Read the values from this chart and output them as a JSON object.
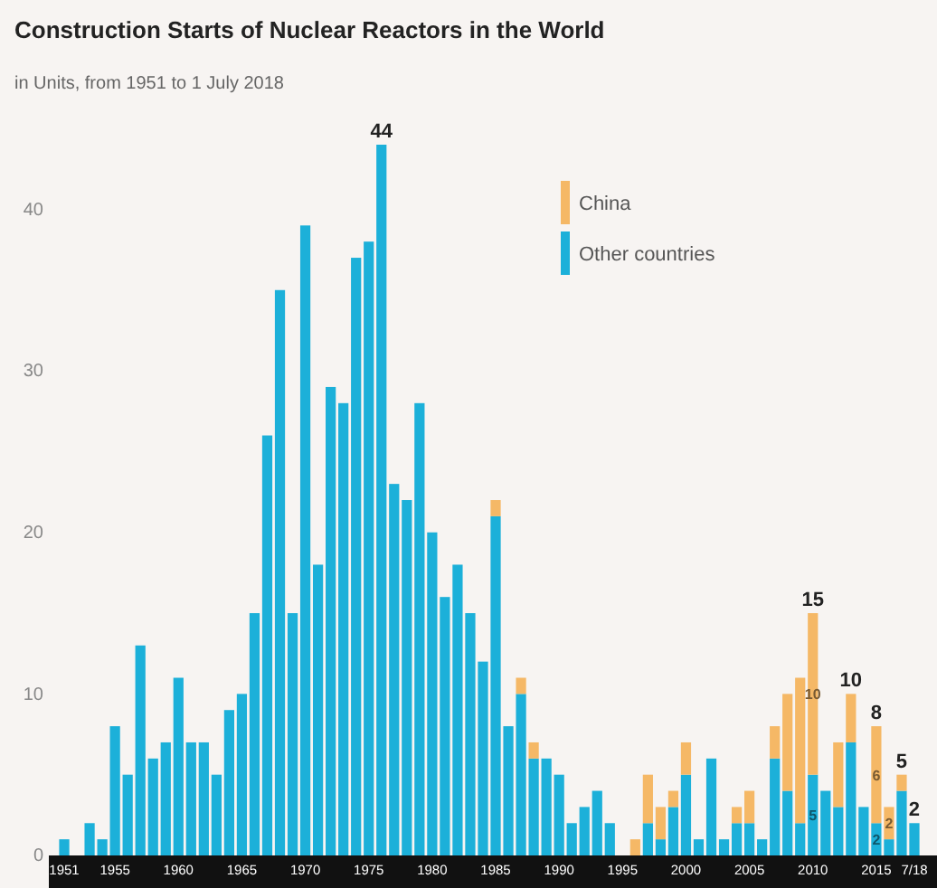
{
  "chart_data": {
    "type": "bar",
    "title": "Construction Starts of Nuclear Reactors in the World",
    "subtitle": "in Units, from 1951 to 1 July 2018",
    "categories": [
      "1951",
      null,
      null,
      null,
      "1955",
      null,
      null,
      null,
      null,
      "1960",
      null,
      null,
      null,
      null,
      "1965",
      null,
      null,
      null,
      null,
      "1970",
      null,
      null,
      null,
      null,
      "1975",
      null,
      null,
      null,
      null,
      "1980",
      null,
      null,
      null,
      null,
      "1985",
      null,
      null,
      null,
      null,
      "1990",
      null,
      null,
      null,
      null,
      "1995",
      null,
      null,
      null,
      null,
      "2000",
      null,
      null,
      null,
      null,
      "2005",
      null,
      null,
      null,
      null,
      "2010",
      null,
      null,
      null,
      null,
      "2015",
      null,
      null,
      "7/18"
    ],
    "stacked": true,
    "series": [
      {
        "name": "Other countries",
        "color": "#1cb0d9",
        "values": [
          1,
          0,
          2,
          1,
          8,
          5,
          13,
          6,
          7,
          11,
          7,
          7,
          5,
          9,
          10,
          15,
          26,
          35,
          15,
          39,
          18,
          29,
          28,
          37,
          38,
          44,
          23,
          22,
          28,
          20,
          16,
          18,
          15,
          12,
          21,
          8,
          10,
          6,
          6,
          5,
          2,
          3,
          4,
          2,
          0,
          0,
          2,
          1,
          3,
          5,
          1,
          6,
          1,
          2,
          2,
          1,
          6,
          4,
          2,
          5,
          4,
          3,
          7,
          3,
          2,
          1,
          4,
          2
        ],
        "value_labels": [
          null,
          null,
          null,
          null,
          null,
          null,
          null,
          null,
          null,
          null,
          null,
          null,
          null,
          null,
          null,
          null,
          null,
          null,
          null,
          null,
          null,
          null,
          null,
          null,
          null,
          null,
          null,
          null,
          null,
          null,
          null,
          null,
          null,
          null,
          null,
          null,
          null,
          null,
          null,
          null,
          null,
          null,
          null,
          null,
          null,
          null,
          null,
          null,
          null,
          null,
          null,
          null,
          null,
          null,
          null,
          null,
          null,
          null,
          null,
          "5",
          null,
          null,
          null,
          null,
          "2",
          null,
          null,
          null
        ]
      },
      {
        "name": "China",
        "color": "#f5b866",
        "values": [
          0,
          0,
          0,
          0,
          0,
          0,
          0,
          0,
          0,
          0,
          0,
          0,
          0,
          0,
          0,
          0,
          0,
          0,
          0,
          0,
          0,
          0,
          0,
          0,
          0,
          0,
          0,
          0,
          0,
          0,
          0,
          0,
          0,
          0,
          1,
          0,
          1,
          1,
          0,
          0,
          0,
          0,
          0,
          0,
          0,
          1,
          3,
          2,
          1,
          2,
          0,
          0,
          0,
          1,
          2,
          0,
          2,
          6,
          9,
          10,
          0,
          4,
          3,
          0,
          6,
          2,
          1,
          0
        ],
        "value_labels": [
          null,
          null,
          null,
          null,
          null,
          null,
          null,
          null,
          null,
          null,
          null,
          null,
          null,
          null,
          null,
          null,
          null,
          null,
          null,
          null,
          null,
          null,
          null,
          null,
          null,
          null,
          null,
          null,
          null,
          null,
          null,
          null,
          null,
          null,
          null,
          null,
          null,
          null,
          null,
          null,
          null,
          null,
          null,
          null,
          null,
          null,
          null,
          null,
          null,
          null,
          null,
          null,
          null,
          null,
          null,
          null,
          null,
          null,
          null,
          "10",
          null,
          null,
          null,
          null,
          "6",
          "2",
          null,
          null
        ]
      }
    ],
    "totals": [
      null,
      null,
      null,
      null,
      null,
      null,
      null,
      null,
      null,
      null,
      null,
      null,
      null,
      null,
      null,
      null,
      null,
      null,
      null,
      null,
      null,
      null,
      null,
      null,
      null,
      "44",
      null,
      null,
      null,
      null,
      null,
      null,
      null,
      null,
      null,
      null,
      null,
      null,
      null,
      null,
      null,
      null,
      null,
      null,
      null,
      null,
      null,
      null,
      null,
      null,
      null,
      null,
      null,
      null,
      null,
      null,
      null,
      null,
      null,
      "15",
      null,
      null,
      "10",
      null,
      "8",
      null,
      "5",
      "2"
    ],
    "ylim": [
      0,
      44
    ],
    "yticks": [
      0,
      10,
      20,
      30,
      40
    ],
    "grid": false,
    "legend": "top right"
  }
}
